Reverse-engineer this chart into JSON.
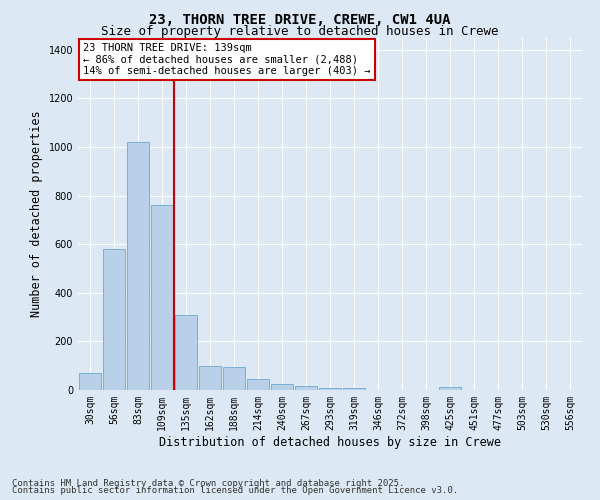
{
  "title_line1": "23, THORN TREE DRIVE, CREWE, CW1 4UA",
  "title_line2": "Size of property relative to detached houses in Crewe",
  "xlabel": "Distribution of detached houses by size in Crewe",
  "ylabel": "Number of detached properties",
  "categories": [
    "30sqm",
    "56sqm",
    "83sqm",
    "109sqm",
    "135sqm",
    "162sqm",
    "188sqm",
    "214sqm",
    "240sqm",
    "267sqm",
    "293sqm",
    "319sqm",
    "346sqm",
    "372sqm",
    "398sqm",
    "425sqm",
    "451sqm",
    "477sqm",
    "503sqm",
    "530sqm",
    "556sqm"
  ],
  "values": [
    70,
    580,
    1020,
    760,
    310,
    100,
    95,
    45,
    25,
    18,
    10,
    8,
    0,
    0,
    0,
    14,
    0,
    0,
    0,
    0,
    0
  ],
  "bar_color": "#b8d0e8",
  "bar_edge_color": "#7aafd4",
  "vline_x_index": 4,
  "vline_color": "#cc0000",
  "ylim": [
    0,
    1450
  ],
  "yticks": [
    0,
    200,
    400,
    600,
    800,
    1000,
    1200,
    1400
  ],
  "annotation_text": "23 THORN TREE DRIVE: 139sqm\n← 86% of detached houses are smaller (2,488)\n14% of semi-detached houses are larger (403) →",
  "annotation_box_facecolor": "#ffffff",
  "annotation_box_edgecolor": "#cc0000",
  "footer_line1": "Contains HM Land Registry data © Crown copyright and database right 2025.",
  "footer_line2": "Contains public sector information licensed under the Open Government Licence v3.0.",
  "background_color": "#dce9f5",
  "plot_bg_color": "#dce9f5",
  "grid_color": "#ffffff",
  "title_fontsize": 10,
  "subtitle_fontsize": 9,
  "axis_label_fontsize": 8.5,
  "tick_fontsize": 7,
  "annotation_fontsize": 7.5,
  "footer_fontsize": 6.5
}
